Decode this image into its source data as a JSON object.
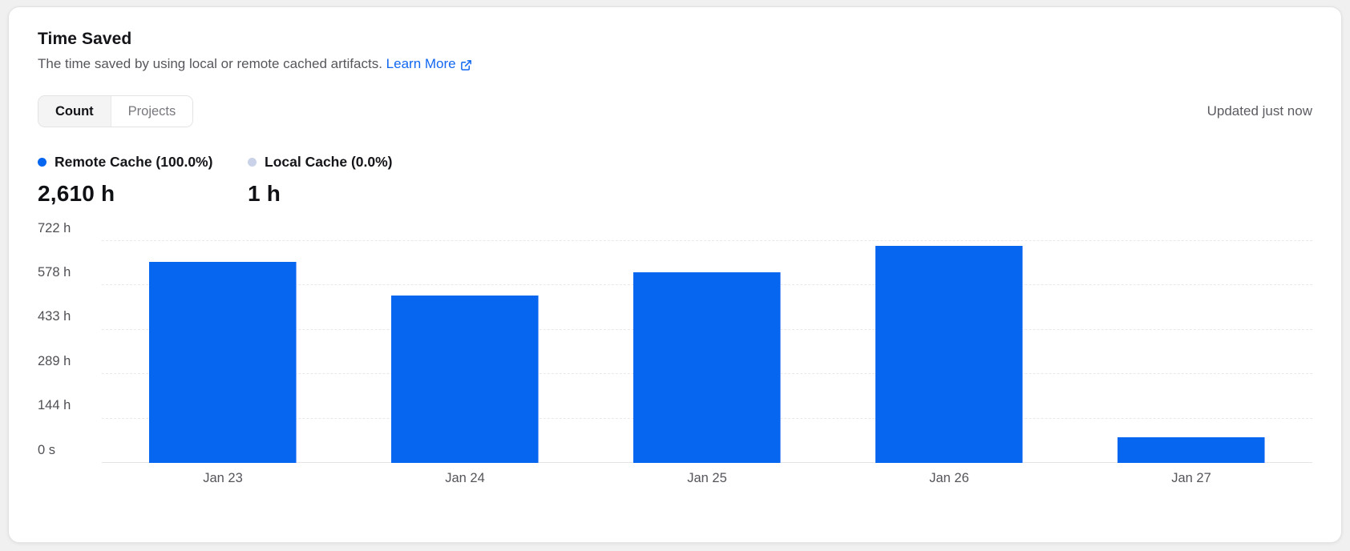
{
  "card": {
    "title": "Time Saved",
    "description": "The time saved by using local or remote cached artifacts.",
    "learn_more_label": "Learn More",
    "updated_text": "Updated just now",
    "tabs": [
      {
        "label": "Count",
        "active": true
      },
      {
        "label": "Projects",
        "active": false
      }
    ]
  },
  "stats": [
    {
      "label": "Remote Cache (100.0%)",
      "value": "2,610 h",
      "dot_color": "#0666f0"
    },
    {
      "label": "Local Cache (0.0%)",
      "value": "1 h",
      "dot_color": "#c9d2e8"
    }
  ],
  "chart_data": {
    "type": "bar",
    "categories": [
      "Jan 23",
      "Jan 24",
      "Jan 25",
      "Jan 26",
      "Jan 27"
    ],
    "series": [
      {
        "name": "Remote Cache",
        "values": [
          655,
          545,
          620,
          707,
          83
        ]
      }
    ],
    "values_unit": "h",
    "total_remote": "2,610 h",
    "total_local": "1 h",
    "ylim": [
      0,
      722
    ],
    "y_ticks": [
      {
        "value": 722,
        "label": "722 h"
      },
      {
        "value": 578,
        "label": "578 h"
      },
      {
        "value": 433,
        "label": "433 h"
      },
      {
        "value": 289,
        "label": "289 h"
      },
      {
        "value": 144,
        "label": "144 h"
      },
      {
        "value": 0,
        "label": "0 s"
      }
    ],
    "grid": true,
    "bar_color": "#0666f0",
    "legend_position": "top-left"
  },
  "colors": {
    "accent_blue": "#0666f0",
    "local_cache": "#c9d2e8",
    "link_blue": "#1268f0",
    "gridline": "#e9e9ea"
  }
}
